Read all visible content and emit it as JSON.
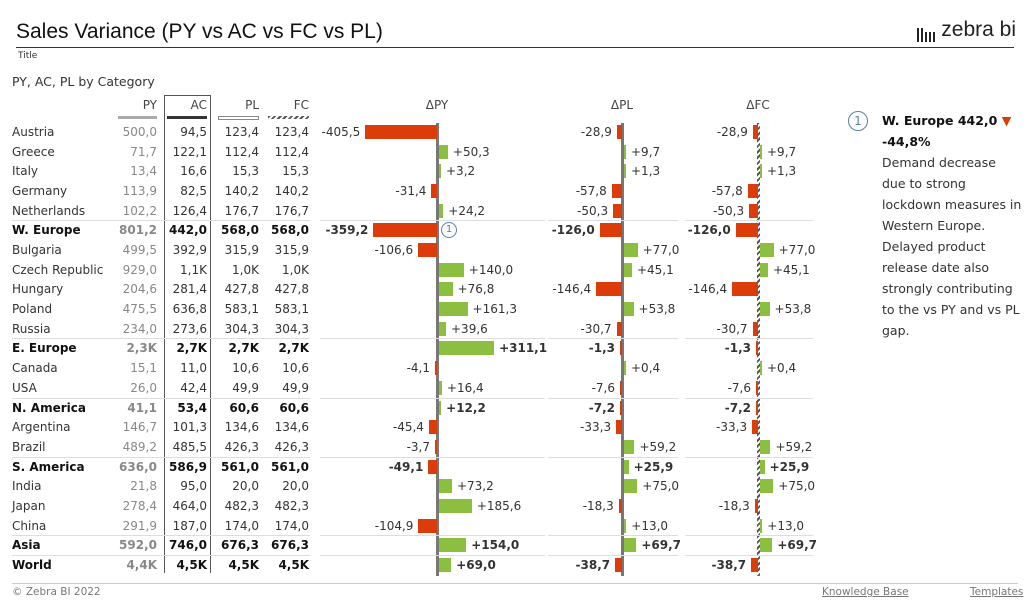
{
  "header": {
    "title": "Sales Variance (PY vs AC vs FC vs PL)",
    "subtitle": "Title",
    "logo_text": "zebra bi"
  },
  "chart_data": {
    "type": "table",
    "title": "PY, AC, PL by Category",
    "columns": [
      "PY",
      "AC",
      "PL",
      "FC",
      "ΔPY",
      "ΔPL",
      "ΔFC"
    ],
    "rows": [
      {
        "name": "Austria",
        "py": "500,0",
        "ac": "94,5",
        "pl": "123,4",
        "fc": "123,4",
        "dpy": -405.5,
        "dpl": -28.9,
        "dfc": -28.9,
        "subtotal": false
      },
      {
        "name": "Greece",
        "py": "71,7",
        "ac": "122,1",
        "pl": "112,4",
        "fc": "112,4",
        "dpy": 50.3,
        "dpl": 9.7,
        "dfc": 9.7,
        "subtotal": false
      },
      {
        "name": "Italy",
        "py": "13,4",
        "ac": "16,6",
        "pl": "15,3",
        "fc": "15,3",
        "dpy": 3.2,
        "dpl": 1.3,
        "dfc": 1.3,
        "subtotal": false
      },
      {
        "name": "Germany",
        "py": "113,9",
        "ac": "82,5",
        "pl": "140,2",
        "fc": "140,2",
        "dpy": -31.4,
        "dpl": -57.8,
        "dfc": -57.8,
        "subtotal": false
      },
      {
        "name": "Netherlands",
        "py": "102,2",
        "ac": "126,4",
        "pl": "176,7",
        "fc": "176,7",
        "dpy": 24.2,
        "dpl": -50.3,
        "dfc": -50.3,
        "subtotal": false
      },
      {
        "name": "W. Europe",
        "py": "801,2",
        "ac": "442,0",
        "pl": "568,0",
        "fc": "568,0",
        "dpy": -359.2,
        "dpl": -126.0,
        "dfc": -126.0,
        "subtotal": true,
        "marker": "1"
      },
      {
        "name": "Bulgaria",
        "py": "499,5",
        "ac": "392,9",
        "pl": "315,9",
        "fc": "315,9",
        "dpy": -106.6,
        "dpl": 77.0,
        "dfc": 77.0,
        "subtotal": false
      },
      {
        "name": "Czech Republic",
        "py": "929,0",
        "ac": "1,1K",
        "pl": "1,0K",
        "fc": "1,0K",
        "dpy": 140.0,
        "dpl": 45.1,
        "dfc": 45.1,
        "subtotal": false
      },
      {
        "name": "Hungary",
        "py": "204,6",
        "ac": "281,4",
        "pl": "427,8",
        "fc": "427,8",
        "dpy": 76.8,
        "dpl": -146.4,
        "dfc": -146.4,
        "subtotal": false
      },
      {
        "name": "Poland",
        "py": "475,5",
        "ac": "636,8",
        "pl": "583,1",
        "fc": "583,1",
        "dpy": 161.3,
        "dpl": 53.8,
        "dfc": 53.8,
        "subtotal": false
      },
      {
        "name": "Russia",
        "py": "234,0",
        "ac": "273,6",
        "pl": "304,3",
        "fc": "304,3",
        "dpy": 39.6,
        "dpl": -30.7,
        "dfc": -30.7,
        "subtotal": false
      },
      {
        "name": "E. Europe",
        "py": "2,3K",
        "ac": "2,7K",
        "pl": "2,7K",
        "fc": "2,7K",
        "dpy": 311.1,
        "dpl": -1.3,
        "dfc": -1.3,
        "subtotal": true
      },
      {
        "name": "Canada",
        "py": "15,1",
        "ac": "11,0",
        "pl": "10,6",
        "fc": "10,6",
        "dpy": -4.1,
        "dpl": 0.4,
        "dfc": 0.4,
        "subtotal": false
      },
      {
        "name": "USA",
        "py": "26,0",
        "ac": "42,4",
        "pl": "49,9",
        "fc": "49,9",
        "dpy": 16.4,
        "dpl": -7.6,
        "dfc": -7.6,
        "subtotal": false
      },
      {
        "name": "N. America",
        "py": "41,1",
        "ac": "53,4",
        "pl": "60,6",
        "fc": "60,6",
        "dpy": 12.2,
        "dpl": -7.2,
        "dfc": -7.2,
        "subtotal": true
      },
      {
        "name": "Argentina",
        "py": "146,7",
        "ac": "101,3",
        "pl": "134,6",
        "fc": "134,6",
        "dpy": -45.4,
        "dpl": -33.3,
        "dfc": -33.3,
        "subtotal": false
      },
      {
        "name": "Brazil",
        "py": "489,2",
        "ac": "485,5",
        "pl": "426,3",
        "fc": "426,3",
        "dpy": -3.7,
        "dpl": 59.2,
        "dfc": 59.2,
        "subtotal": false
      },
      {
        "name": "S. America",
        "py": "636,0",
        "ac": "586,9",
        "pl": "561,0",
        "fc": "561,0",
        "dpy": -49.1,
        "dpl": 25.9,
        "dfc": 25.9,
        "subtotal": true
      },
      {
        "name": "India",
        "py": "21,8",
        "ac": "95,0",
        "pl": "20,0",
        "fc": "20,0",
        "dpy": 73.2,
        "dpl": 75.0,
        "dfc": 75.0,
        "subtotal": false
      },
      {
        "name": "Japan",
        "py": "278,4",
        "ac": "464,0",
        "pl": "482,3",
        "fc": "482,3",
        "dpy": 185.6,
        "dpl": -18.3,
        "dfc": -18.3,
        "subtotal": false
      },
      {
        "name": "China",
        "py": "291,9",
        "ac": "187,0",
        "pl": "174,0",
        "fc": "174,0",
        "dpy": -104.9,
        "dpl": 13.0,
        "dfc": 13.0,
        "subtotal": false
      },
      {
        "name": "Asia",
        "py": "592,0",
        "ac": "746,0",
        "pl": "676,3",
        "fc": "676,3",
        "dpy": 154.0,
        "dpl": 69.7,
        "dfc": 69.7,
        "subtotal": true
      },
      {
        "name": "World",
        "py": "4,4K",
        "ac": "4,5K",
        "pl": "4,5K",
        "fc": "4,5K",
        "dpy": 69.0,
        "dpl": -38.7,
        "dfc": -38.7,
        "subtotal": true
      }
    ],
    "colors": {
      "positive": "#8cbf3f",
      "negative": "#dc3c0a",
      "axis": "#666"
    }
  },
  "comment": {
    "marker": "1",
    "heading": "W. Europe 442,0",
    "heading_pct": "-44,8%",
    "trend_icon": "triangle-down",
    "trend_color": "#dc3c0a",
    "body": [
      "Demand decrease due to strong lockdown measures in Western Europe.",
      "Delayed product release date also strongly contributing to the vs PY and vs PL gap."
    ]
  },
  "footer": {
    "copyright": "© Zebra BI 2022",
    "knowledge_base": "Knowledge Base",
    "templates": "Templates"
  }
}
